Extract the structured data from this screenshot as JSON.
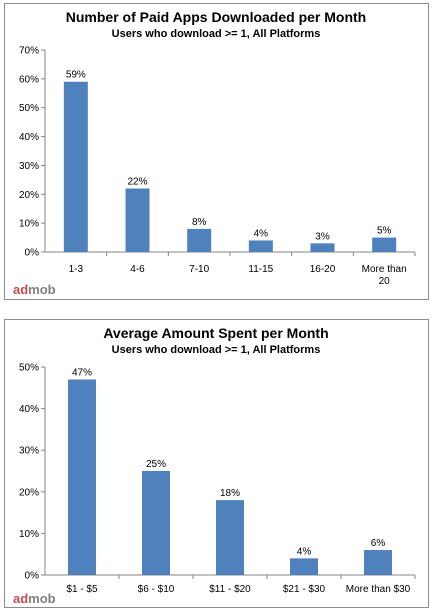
{
  "chart_data": [
    {
      "type": "bar",
      "title": "Number of Paid Apps Downloaded per Month",
      "subtitle": "Users who download >= 1, All Platforms",
      "categories": [
        "1-3",
        "4-6",
        "7-10",
        "11-15",
        "16-20",
        "More than 20"
      ],
      "values": [
        59,
        22,
        8,
        4,
        3,
        5
      ],
      "data_labels": [
        "59%",
        "22%",
        "8%",
        "4%",
        "3%",
        "5%"
      ],
      "y_ticks": [
        "0%",
        "10%",
        "20%",
        "30%",
        "40%",
        "50%",
        "60%",
        "70%"
      ],
      "ylim": [
        0,
        70
      ],
      "grid": false,
      "legend": "none",
      "bar_color": "#4f81bd"
    },
    {
      "type": "bar",
      "title": "Average Amount Spent per Month",
      "subtitle": "Users who download >= 1, All Platforms",
      "categories": [
        "$1 - $5",
        "$6 - $10",
        "$11 - $20",
        "$21 - $30",
        "More than $30"
      ],
      "values": [
        47,
        25,
        18,
        4,
        6
      ],
      "data_labels": [
        "47%",
        "25%",
        "18%",
        "4%",
        "6%"
      ],
      "y_ticks": [
        "0%",
        "10%",
        "20%",
        "30%",
        "40%",
        "50%"
      ],
      "ylim": [
        0,
        50
      ],
      "grid": false,
      "legend": "none",
      "bar_color": "#4f81bd"
    }
  ],
  "logo": {
    "part1": "ad",
    "part2": "mob",
    "color1": "#c0504d",
    "color2": "#7f7f7f"
  }
}
